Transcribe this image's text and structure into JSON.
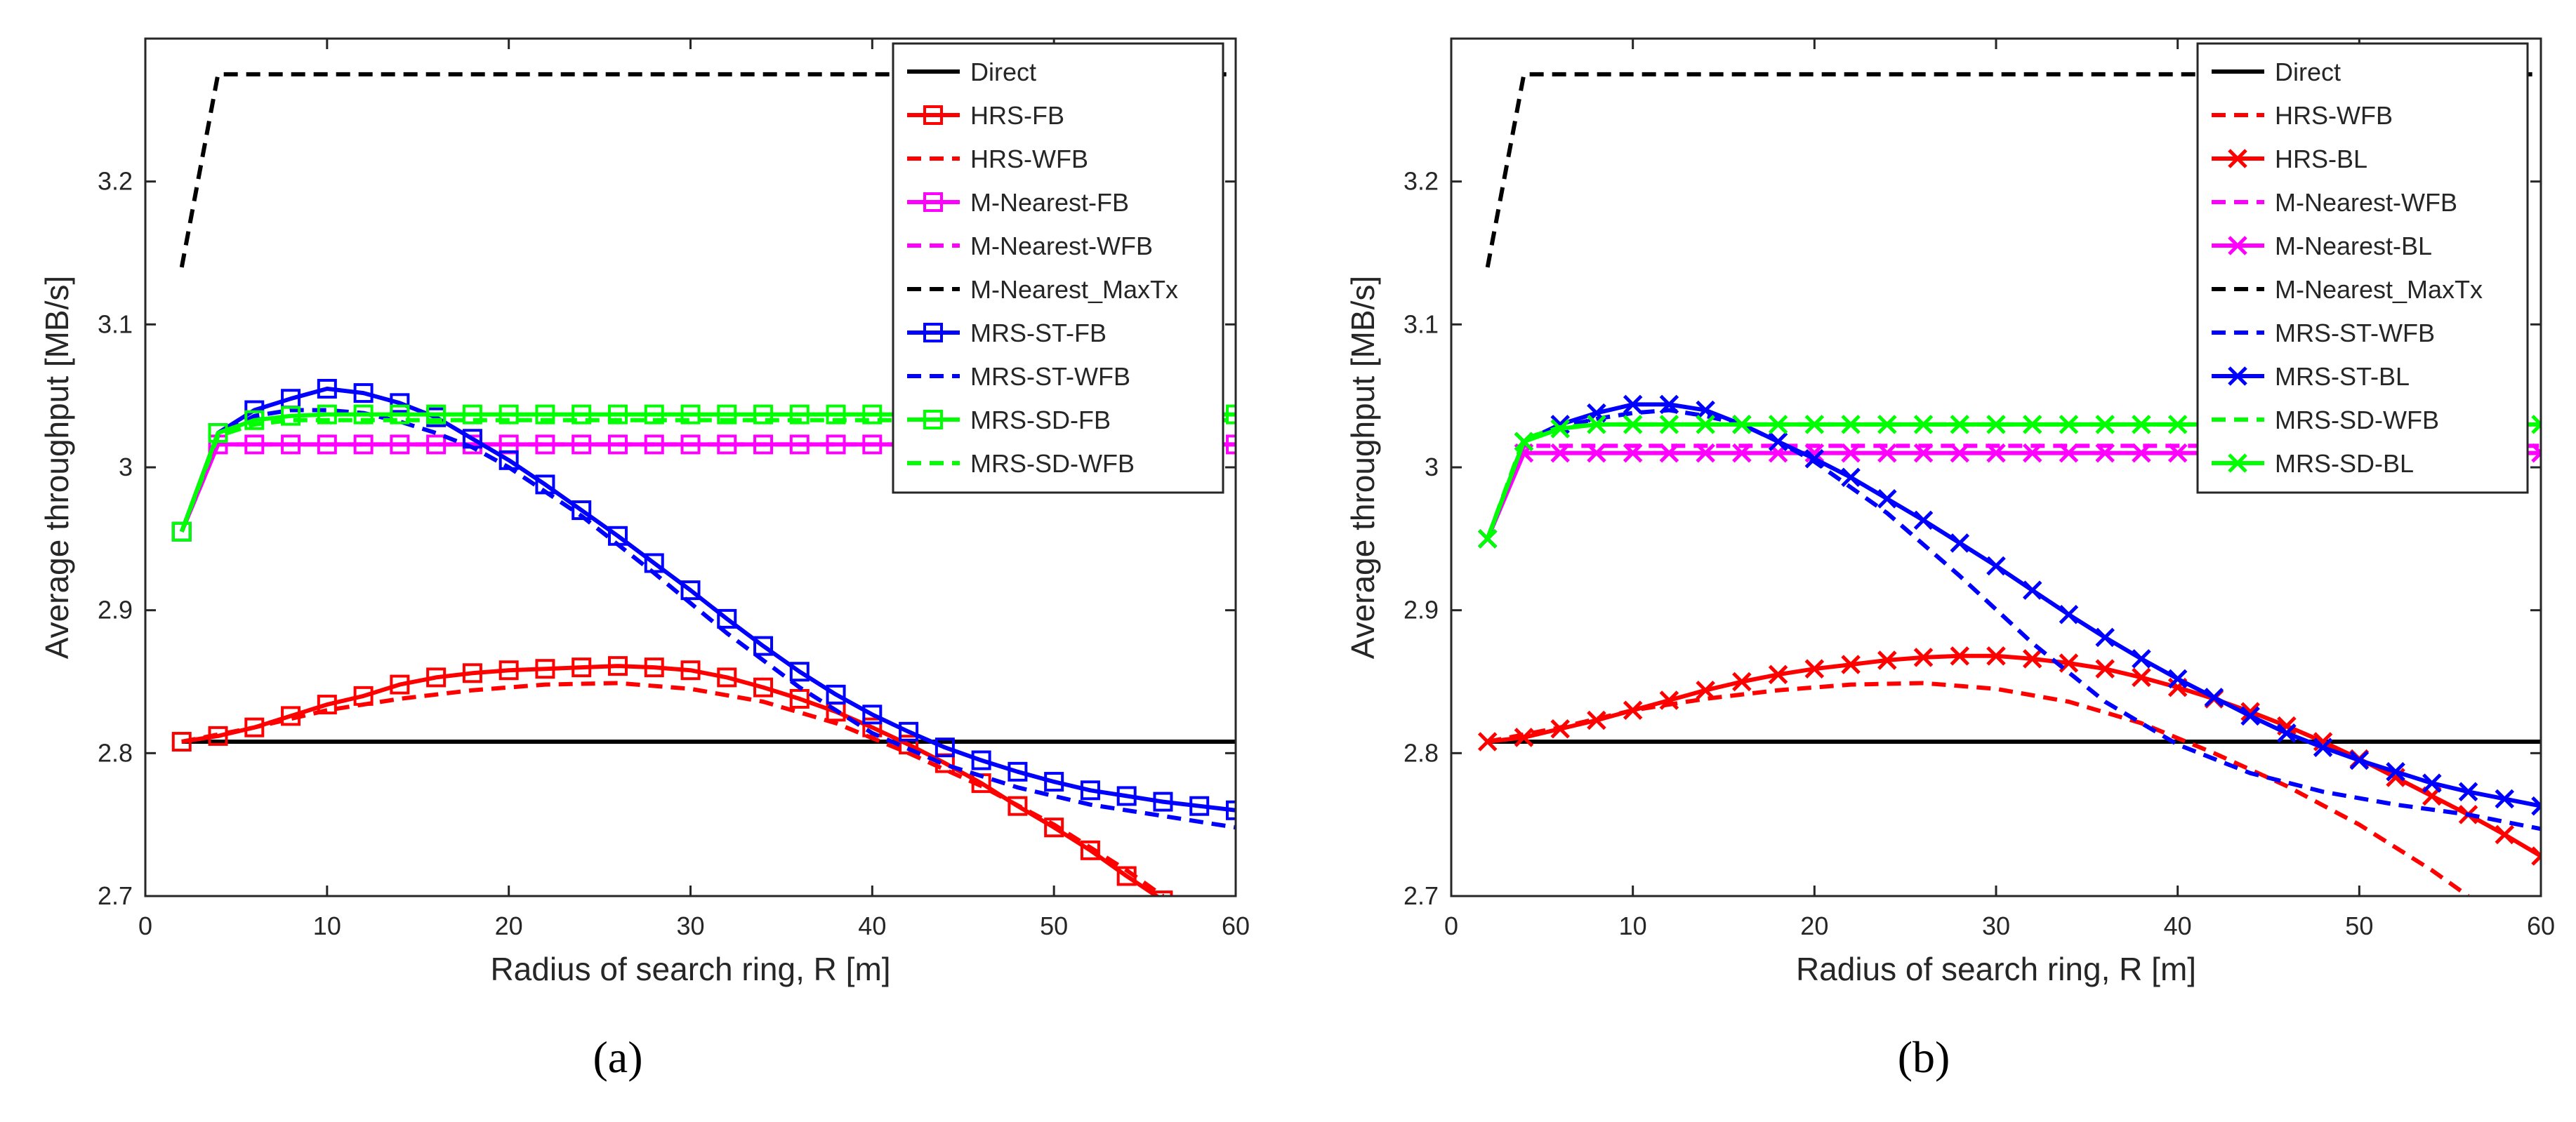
{
  "panels": [
    {
      "caption": "(a)",
      "chart_data": {
        "type": "line",
        "title": "",
        "xlabel": "Radius of search ring, R [m]",
        "ylabel": "Average throughput [MB/s]",
        "xlim": [
          0,
          60
        ],
        "ylim": [
          2.7,
          3.3
        ],
        "xticks": [
          0,
          10,
          20,
          30,
          40,
          50,
          60
        ],
        "yticks": [
          2.7,
          2.8,
          2.9,
          3,
          3.1,
          3.2
        ],
        "legend_position": "top-right",
        "series": [
          {
            "name": "Direct",
            "color": "#000000",
            "dash": "solid",
            "marker": "none",
            "x": [
              2,
              60
            ],
            "y": [
              2.808,
              2.808
            ]
          },
          {
            "name": "HRS-FB",
            "color": "#ff0000",
            "dash": "solid",
            "marker": "square",
            "x": [
              2,
              4,
              6,
              8,
              10,
              12,
              14,
              16,
              18,
              20,
              22,
              24,
              26,
              28,
              30,
              32,
              34,
              36,
              38,
              40,
              42,
              44,
              46,
              48,
              50,
              52,
              54,
              56
            ],
            "y": [
              2.808,
              2.812,
              2.818,
              2.826,
              2.834,
              2.84,
              2.848,
              2.853,
              2.856,
              2.858,
              2.859,
              2.86,
              2.861,
              2.86,
              2.858,
              2.853,
              2.846,
              2.838,
              2.829,
              2.818,
              2.806,
              2.793,
              2.779,
              2.763,
              2.748,
              2.732,
              2.714,
              2.697
            ]
          },
          {
            "name": "HRS-WFB",
            "color": "#ff0000",
            "dash": "dashed",
            "marker": "none",
            "x": [
              2,
              6,
              10,
              14,
              18,
              22,
              26,
              30,
              34,
              38,
              42,
              46,
              50,
              54,
              56
            ],
            "y": [
              2.808,
              2.818,
              2.83,
              2.838,
              2.844,
              2.848,
              2.849,
              2.845,
              2.836,
              2.821,
              2.8,
              2.777,
              2.75,
              2.718,
              2.7
            ]
          },
          {
            "name": "M-Nearest-FB",
            "color": "#ff00ff",
            "dash": "solid",
            "marker": "square",
            "x": [
              2,
              4,
              6,
              8,
              10,
              12,
              14,
              16,
              18,
              20,
              22,
              24,
              26,
              28,
              30,
              32,
              34,
              36,
              38,
              40,
              42,
              44,
              46,
              48,
              50,
              52,
              54,
              56,
              58,
              60
            ],
            "y": [
              2.955,
              3.016,
              3.016,
              3.016,
              3.016,
              3.016,
              3.016,
              3.016,
              3.016,
              3.016,
              3.016,
              3.016,
              3.016,
              3.016,
              3.016,
              3.016,
              3.016,
              3.016,
              3.016,
              3.016,
              3.016,
              3.016,
              3.016,
              3.016,
              3.016,
              3.016,
              3.016,
              3.016,
              3.016,
              3.016
            ]
          },
          {
            "name": "M-Nearest-WFB",
            "color": "#ff00ff",
            "dash": "dashed",
            "marker": "none",
            "x": [
              2,
              4,
              60
            ],
            "y": [
              2.955,
              3.016,
              3.016
            ]
          },
          {
            "name": "M-Nearest_MaxTx",
            "color": "#000000",
            "dash": "dashed",
            "marker": "none",
            "x": [
              2,
              4,
              60
            ],
            "y": [
              3.14,
              3.275,
              3.275
            ]
          },
          {
            "name": "MRS-ST-FB",
            "color": "#0000ff",
            "dash": "solid",
            "marker": "square",
            "x": [
              2,
              4,
              6,
              8,
              10,
              12,
              14,
              16,
              18,
              20,
              22,
              24,
              26,
              28,
              30,
              32,
              34,
              36,
              38,
              40,
              42,
              44,
              46,
              48,
              50,
              52,
              54,
              56,
              58,
              60
            ],
            "y": [
              2.955,
              3.024,
              3.04,
              3.048,
              3.055,
              3.052,
              3.045,
              3.035,
              3.02,
              3.005,
              2.988,
              2.97,
              2.952,
              2.933,
              2.914,
              2.894,
              2.875,
              2.857,
              2.841,
              2.827,
              2.815,
              2.804,
              2.795,
              2.787,
              2.78,
              2.774,
              2.77,
              2.766,
              2.763,
              2.76
            ]
          },
          {
            "name": "MRS-ST-WFB",
            "color": "#0000ff",
            "dash": "dashed",
            "marker": "none",
            "x": [
              2,
              4,
              6,
              8,
              10,
              12,
              14,
              16,
              18,
              20,
              24,
              28,
              32,
              36,
              40,
              44,
              48,
              52,
              56,
              60
            ],
            "y": [
              2.955,
              3.022,
              3.036,
              3.04,
              3.04,
              3.038,
              3.032,
              3.024,
              3.014,
              3.0,
              2.966,
              2.926,
              2.884,
              2.846,
              2.814,
              2.792,
              2.776,
              2.764,
              2.756,
              2.748
            ]
          },
          {
            "name": "MRS-SD-FB",
            "color": "#00ff00",
            "dash": "solid",
            "marker": "square",
            "x": [
              2,
              4,
              6,
              8,
              10,
              12,
              14,
              16,
              18,
              20,
              22,
              24,
              26,
              28,
              30,
              32,
              34,
              36,
              38,
              40,
              42,
              44,
              46,
              48,
              50,
              52,
              54,
              56,
              58,
              60
            ],
            "y": [
              2.955,
              3.024,
              3.033,
              3.036,
              3.037,
              3.037,
              3.037,
              3.037,
              3.037,
              3.037,
              3.037,
              3.037,
              3.037,
              3.037,
              3.037,
              3.037,
              3.037,
              3.037,
              3.037,
              3.037,
              3.037,
              3.037,
              3.037,
              3.037,
              3.037,
              3.037,
              3.037,
              3.037,
              3.037,
              3.037
            ]
          },
          {
            "name": "MRS-SD-WFB",
            "color": "#00ff00",
            "dash": "dashed",
            "marker": "none",
            "x": [
              2,
              4,
              6,
              8,
              60
            ],
            "y": [
              2.955,
              3.022,
              3.03,
              3.033,
              3.033
            ]
          }
        ]
      }
    },
    {
      "caption": "(b)",
      "chart_data": {
        "type": "line",
        "title": "",
        "xlabel": "Radius of search ring, R [m]",
        "ylabel": "Average throughput [MB/s]",
        "xlim": [
          0,
          60
        ],
        "ylim": [
          2.7,
          3.3
        ],
        "xticks": [
          0,
          10,
          20,
          30,
          40,
          50,
          60
        ],
        "yticks": [
          2.7,
          2.8,
          2.9,
          3,
          3.1,
          3.2
        ],
        "legend_position": "top-right",
        "series": [
          {
            "name": "Direct",
            "color": "#000000",
            "dash": "solid",
            "marker": "none",
            "x": [
              2,
              60
            ],
            "y": [
              2.808,
              2.808
            ]
          },
          {
            "name": "HRS-WFB",
            "color": "#ff0000",
            "dash": "dashed",
            "marker": "none",
            "x": [
              2,
              6,
              10,
              14,
              18,
              22,
              26,
              30,
              34,
              38,
              42,
              46,
              50,
              54,
              56
            ],
            "y": [
              2.808,
              2.818,
              2.83,
              2.838,
              2.844,
              2.848,
              2.849,
              2.845,
              2.836,
              2.821,
              2.8,
              2.777,
              2.75,
              2.718,
              2.7
            ]
          },
          {
            "name": "HRS-BL",
            "color": "#ff0000",
            "dash": "solid",
            "marker": "x",
            "x": [
              2,
              4,
              6,
              8,
              10,
              12,
              14,
              16,
              18,
              20,
              22,
              24,
              26,
              28,
              30,
              32,
              34,
              36,
              38,
              40,
              42,
              44,
              46,
              48,
              50,
              52,
              54,
              56,
              58,
              60
            ],
            "y": [
              2.808,
              2.811,
              2.817,
              2.823,
              2.83,
              2.837,
              2.844,
              2.85,
              2.855,
              2.859,
              2.862,
              2.865,
              2.867,
              2.868,
              2.868,
              2.866,
              2.863,
              2.859,
              2.853,
              2.846,
              2.838,
              2.829,
              2.819,
              2.808,
              2.796,
              2.783,
              2.77,
              2.757,
              2.743,
              2.728
            ]
          },
          {
            "name": "M-Nearest-WFB",
            "color": "#ff00ff",
            "dash": "dashed",
            "marker": "none",
            "x": [
              2,
              4,
              60
            ],
            "y": [
              2.95,
              3.015,
              3.015
            ]
          },
          {
            "name": "M-Nearest-BL",
            "color": "#ff00ff",
            "dash": "solid",
            "marker": "x",
            "x": [
              2,
              4,
              6,
              8,
              10,
              12,
              14,
              16,
              18,
              20,
              22,
              24,
              26,
              28,
              30,
              32,
              34,
              36,
              38,
              40,
              42,
              44,
              46,
              48,
              50,
              52,
              54,
              56,
              58,
              60
            ],
            "y": [
              2.95,
              3.01,
              3.01,
              3.01,
              3.01,
              3.01,
              3.01,
              3.01,
              3.01,
              3.01,
              3.01,
              3.01,
              3.01,
              3.01,
              3.01,
              3.01,
              3.01,
              3.01,
              3.01,
              3.01,
              3.01,
              3.01,
              3.01,
              3.01,
              3.01,
              3.01,
              3.01,
              3.01,
              3.01,
              3.01
            ]
          },
          {
            "name": "M-Nearest_MaxTx",
            "color": "#000000",
            "dash": "dashed",
            "marker": "none",
            "x": [
              2,
              4,
              60
            ],
            "y": [
              3.14,
              3.275,
              3.275
            ]
          },
          {
            "name": "MRS-ST-WFB",
            "color": "#0000ff",
            "dash": "dashed",
            "marker": "none",
            "x": [
              2,
              4,
              6,
              8,
              10,
              12,
              14,
              16,
              18,
              20,
              24,
              28,
              32,
              36,
              40,
              44,
              48,
              52,
              56,
              60
            ],
            "y": [
              2.95,
              3.018,
              3.028,
              3.034,
              3.038,
              3.04,
              3.036,
              3.03,
              3.018,
              3.004,
              2.968,
              2.924,
              2.877,
              2.836,
              2.806,
              2.786,
              2.773,
              2.764,
              2.757,
              2.747
            ]
          },
          {
            "name": "MRS-ST-BL",
            "color": "#0000ff",
            "dash": "solid",
            "marker": "x",
            "x": [
              2,
              4,
              6,
              8,
              10,
              12,
              14,
              16,
              18,
              20,
              22,
              24,
              26,
              28,
              30,
              32,
              34,
              36,
              38,
              40,
              42,
              44,
              46,
              48,
              50,
              52,
              54,
              56,
              58,
              60
            ],
            "y": [
              2.95,
              3.018,
              3.03,
              3.038,
              3.044,
              3.044,
              3.04,
              3.03,
              3.018,
              3.006,
              2.993,
              2.978,
              2.963,
              2.947,
              2.931,
              2.914,
              2.897,
              2.881,
              2.866,
              2.852,
              2.839,
              2.826,
              2.814,
              2.804,
              2.795,
              2.787,
              2.779,
              2.773,
              2.768,
              2.763
            ]
          },
          {
            "name": "MRS-SD-WFB",
            "color": "#00ff00",
            "dash": "dashed",
            "marker": "none",
            "x": [
              2,
              4,
              6,
              8,
              60
            ],
            "y": [
              2.95,
              3.02,
              3.028,
              3.03,
              3.03
            ]
          },
          {
            "name": "MRS-SD-BL",
            "color": "#00ff00",
            "dash": "solid",
            "marker": "x",
            "x": [
              2,
              4,
              6,
              8,
              10,
              12,
              14,
              16,
              18,
              20,
              22,
              24,
              26,
              28,
              30,
              32,
              34,
              36,
              38,
              40,
              42,
              44,
              46,
              48,
              50,
              52,
              54,
              56,
              58,
              60
            ],
            "y": [
              2.95,
              3.018,
              3.027,
              3.03,
              3.03,
              3.03,
              3.03,
              3.03,
              3.03,
              3.03,
              3.03,
              3.03,
              3.03,
              3.03,
              3.03,
              3.03,
              3.03,
              3.03,
              3.03,
              3.03,
              3.03,
              3.03,
              3.03,
              3.03,
              3.03,
              3.03,
              3.03,
              3.03,
              3.03,
              3.03
            ]
          }
        ]
      }
    }
  ]
}
